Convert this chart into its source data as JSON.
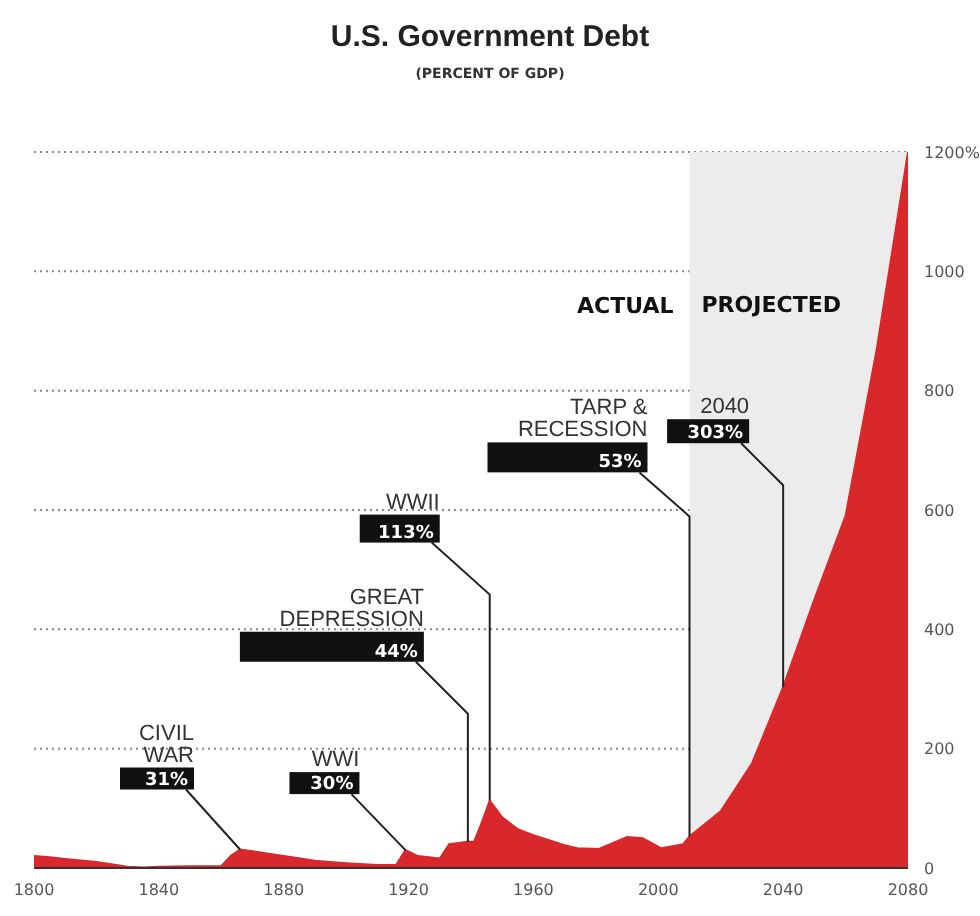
{
  "chart_data": {
    "type": "area",
    "title": "U.S. Government Debt",
    "subtitle": "(PERCENT OF GDP)",
    "x": [
      1800,
      1805,
      1810,
      1820,
      1830,
      1835,
      1840,
      1850,
      1860,
      1863,
      1866,
      1870,
      1880,
      1890,
      1900,
      1910,
      1916,
      1919,
      1923,
      1930,
      1933,
      1939,
      1941,
      1943,
      1946,
      1950,
      1955,
      1960,
      1970,
      1974,
      1981,
      1990,
      1995,
      2001,
      2008,
      2010,
      2020,
      2030,
      2040,
      2050,
      2060,
      2070,
      2080
    ],
    "series": [
      {
        "color": "#d9282b",
        "values": [
          20,
          18,
          15,
          10,
          2,
          1,
          2,
          3,
          3,
          20,
          31,
          28,
          20,
          12,
          8,
          5,
          5,
          30,
          20,
          16,
          40,
          44,
          44,
          70,
          113,
          85,
          65,
          55,
          38,
          33,
          32,
          52,
          50,
          33,
          40,
          53,
          95,
          175,
          303,
          450,
          590,
          870,
          1200
        ]
      }
    ],
    "xlim": [
      1800,
      2080
    ],
    "xticks": [
      1800,
      1840,
      1880,
      1920,
      1960,
      2000,
      2040,
      2080
    ],
    "ylim": [
      0,
      1200
    ],
    "yticks": [
      0,
      200,
      400,
      600,
      800,
      1000,
      {
        "value": 1200,
        "label": "1200%"
      }
    ],
    "grid": "y",
    "legend": false,
    "bands": [
      {
        "axis": "x",
        "from": 2010,
        "to": 2080,
        "label": "PROJECTED",
        "color": "#ececec"
      }
    ],
    "annotations": [
      {
        "text": "CIVIL\nWAR\n31%",
        "x": 1866,
        "y": 31
      },
      {
        "text": "WWI\n30%",
        "x": 1919,
        "y": 30
      },
      {
        "text": "GREAT\nDEPRESSION\n44%",
        "x": 1939,
        "y": 44
      },
      {
        "text": "WWII\n113%",
        "x": 1946,
        "y": 113
      },
      {
        "text": "TARP &\nRECESSION\n53%",
        "x": 2010,
        "y": 53
      },
      {
        "text": "2040\n303%",
        "x": 2040,
        "y": 303
      },
      {
        "text": "ACTUAL",
        "x": 2010,
        "y": 930
      }
    ]
  }
}
